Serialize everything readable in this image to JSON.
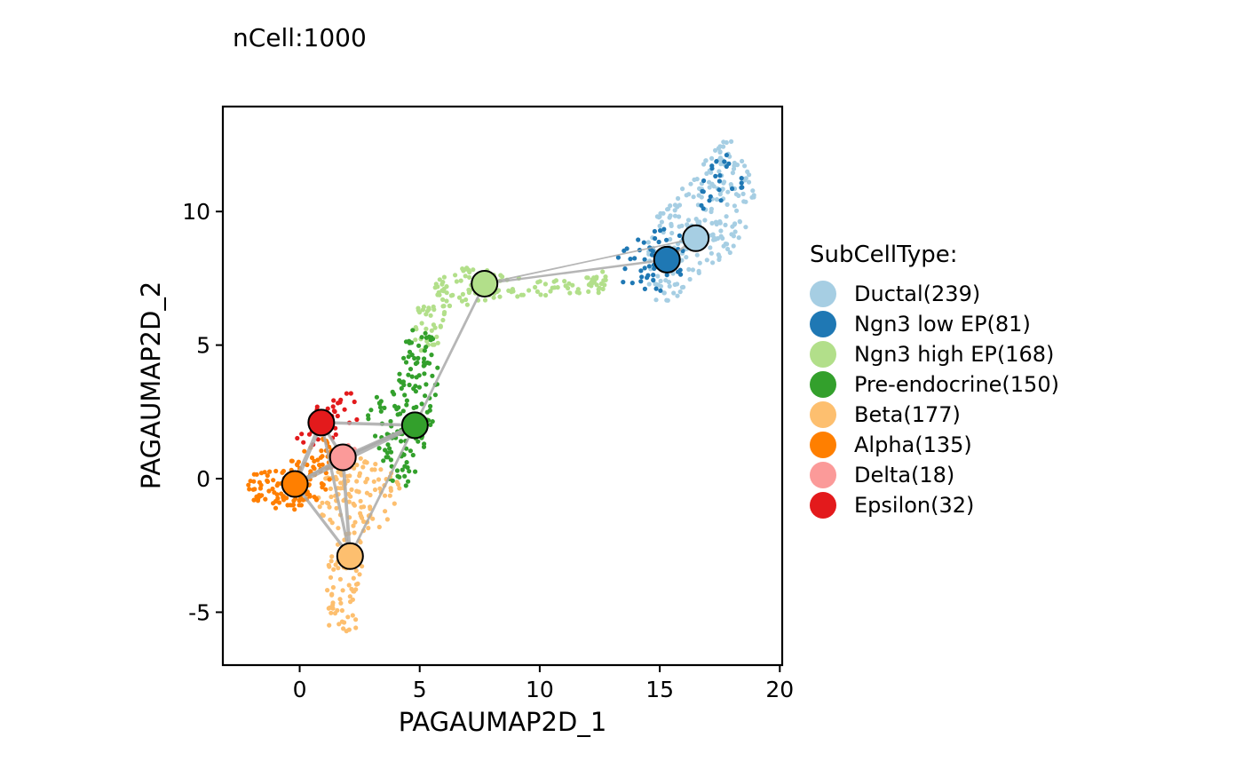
{
  "chart_data": {
    "type": "scatter",
    "title": "",
    "subtitle": "nCell:1000",
    "xlabel": "PAGAUMAP2D_1",
    "ylabel": "PAGAUMAP2D_2",
    "xlim": [
      -3.2,
      20.1
    ],
    "ylim": [
      -6.98,
      13.93
    ],
    "x_ticks": [
      0,
      5,
      10,
      15,
      20
    ],
    "y_ticks": [
      -5,
      0,
      5,
      10
    ],
    "grid": false,
    "legend": {
      "title": "SubCellType:",
      "position": "right",
      "entries": [
        {
          "label": "Ductal(239)",
          "color": "#A6CEE3"
        },
        {
          "label": "Ngn3 low EP(81)",
          "color": "#1F78B4"
        },
        {
          "label": "Ngn3 high EP(168)",
          "color": "#B2DF8A"
        },
        {
          "label": "Pre-endocrine(150)",
          "color": "#33A02C"
        },
        {
          "label": "Beta(177)",
          "color": "#FDBF6F"
        },
        {
          "label": "Alpha(135)",
          "color": "#FF7F00"
        },
        {
          "label": "Delta(18)",
          "color": "#FB9A99"
        },
        {
          "label": "Epsilon(32)",
          "color": "#E31A1C"
        }
      ]
    },
    "series": [
      {
        "name": "Ductal",
        "count": 239,
        "color": "#A6CEE3",
        "centroid": [
          16.5,
          9.0
        ],
        "regions": [
          [
            [
              14.9,
              6.4
            ],
            [
              15.9,
              6.9
            ],
            [
              16.9,
              7.9
            ],
            [
              17.9,
              8.4
            ],
            [
              18.6,
              9.4
            ],
            [
              19.0,
              10.4
            ],
            [
              18.6,
              11.9
            ],
            [
              17.9,
              12.9
            ],
            [
              17.1,
              12.1
            ],
            [
              16.1,
              11.1
            ],
            [
              15.1,
              10.4
            ],
            [
              14.5,
              9.2
            ],
            [
              14.5,
              7.4
            ]
          ]
        ]
      },
      {
        "name": "Ngn3 low EP",
        "count": 81,
        "color": "#1F78B4",
        "centroid": [
          15.3,
          8.2
        ],
        "regions": [
          [
            [
              12.9,
              7.4
            ],
            [
              14.1,
              6.9
            ],
            [
              15.3,
              7.0
            ],
            [
              16.1,
              7.9
            ],
            [
              16.1,
              9.0
            ],
            [
              15.3,
              9.5
            ],
            [
              14.1,
              9.1
            ],
            [
              13.2,
              8.4
            ]
          ],
          [
            [
              16.6,
              9.9
            ],
            [
              17.6,
              10.4
            ],
            [
              18.6,
              11.0
            ],
            [
              17.9,
              12.2
            ],
            [
              16.9,
              11.7
            ]
          ]
        ]
      },
      {
        "name": "Ngn3 high EP",
        "count": 168,
        "color": "#B2DF8A",
        "centroid": [
          7.7,
          7.3
        ],
        "regions": [
          [
            [
              5.5,
              7.3
            ],
            [
              6.3,
              7.8
            ],
            [
              7.6,
              8.0
            ],
            [
              8.6,
              7.6
            ],
            [
              10.1,
              7.4
            ],
            [
              11.6,
              7.5
            ],
            [
              12.9,
              7.9
            ],
            [
              12.6,
              6.9
            ],
            [
              10.6,
              6.9
            ],
            [
              8.6,
              6.7
            ],
            [
              7.1,
              6.5
            ],
            [
              5.9,
              6.4
            ],
            [
              4.9,
              6.6
            ],
            [
              4.7,
              5.3
            ],
            [
              5.1,
              4.6
            ],
            [
              5.9,
              5.1
            ],
            [
              6.1,
              6.1
            ]
          ]
        ]
      },
      {
        "name": "Pre-endocrine",
        "count": 150,
        "color": "#33A02C",
        "centroid": [
          4.8,
          2.0
        ],
        "regions": [
          [
            [
              3.6,
              0.2
            ],
            [
              4.3,
              -0.8
            ],
            [
              5.1,
              0.6
            ],
            [
              5.6,
              2.3
            ],
            [
              5.9,
              3.9
            ],
            [
              5.6,
              5.3
            ],
            [
              4.6,
              5.9
            ],
            [
              4.3,
              4.6
            ],
            [
              3.9,
              3.3
            ],
            [
              3.3,
              3.2
            ],
            [
              2.6,
              2.3
            ],
            [
              3.1,
              1.6
            ]
          ]
        ]
      },
      {
        "name": "Beta",
        "count": 177,
        "color": "#FDBF6F",
        "centroid": [
          2.1,
          -2.9
        ],
        "regions": [
          [
            [
              1.1,
              0.5
            ],
            [
              2.6,
              0.8
            ],
            [
              3.9,
              0.3
            ],
            [
              4.3,
              -0.7
            ],
            [
              3.6,
              -1.7
            ],
            [
              2.6,
              -2.1
            ],
            [
              2.6,
              -3.6
            ],
            [
              2.4,
              -5.9
            ],
            [
              1.2,
              -5.9
            ],
            [
              1.1,
              -3.6
            ],
            [
              1.6,
              -2.0
            ],
            [
              0.6,
              -1.1
            ]
          ]
        ]
      },
      {
        "name": "Alpha",
        "count": 135,
        "color": "#FF7F00",
        "centroid": [
          -0.2,
          -0.2
        ],
        "regions": [
          [
            [
              -2.0,
              0.3
            ],
            [
              -0.7,
              0.4
            ],
            [
              0.3,
              1.2
            ],
            [
              1.0,
              1.6
            ],
            [
              1.6,
              0.7
            ],
            [
              1.1,
              -0.6
            ],
            [
              0.1,
              -1.1
            ],
            [
              -1.0,
              -1.3
            ],
            [
              -1.9,
              -0.9
            ],
            [
              -2.2,
              -0.2
            ]
          ]
        ]
      },
      {
        "name": "Delta",
        "count": 18,
        "color": "#FB9A99",
        "centroid": [
          1.8,
          0.8
        ],
        "regions": [
          [
            [
              1.2,
              1.0
            ],
            [
              2.1,
              1.3
            ],
            [
              2.5,
              0.9
            ],
            [
              2.0,
              0.2
            ],
            [
              1.3,
              0.4
            ]
          ]
        ]
      },
      {
        "name": "Epsilon",
        "count": 32,
        "color": "#E31A1C",
        "centroid": [
          0.9,
          2.1
        ],
        "regions": [
          [
            [
              0.0,
              2.2
            ],
            [
              1.1,
              3.0
            ],
            [
              2.3,
              3.3
            ],
            [
              2.5,
              2.3
            ],
            [
              1.6,
              1.6
            ],
            [
              0.6,
              1.2
            ],
            [
              -0.2,
              1.4
            ]
          ]
        ]
      }
    ],
    "paga_edges": [
      {
        "from": "Ductal",
        "to": "Ngn3 low EP",
        "weight": 0.3
      },
      {
        "from": "Ductal",
        "to": "Ngn3 high EP",
        "weight": 0.15
      },
      {
        "from": "Ngn3 low EP",
        "to": "Ngn3 high EP",
        "weight": 0.3
      },
      {
        "from": "Ngn3 high EP",
        "to": "Pre-endocrine",
        "weight": 0.35
      },
      {
        "from": "Pre-endocrine",
        "to": "Epsilon",
        "weight": 0.5
      },
      {
        "from": "Pre-endocrine",
        "to": "Delta",
        "weight": 0.6
      },
      {
        "from": "Pre-endocrine",
        "to": "Alpha",
        "weight": 0.9
      },
      {
        "from": "Pre-endocrine",
        "to": "Beta",
        "weight": 0.35
      },
      {
        "from": "Epsilon",
        "to": "Alpha",
        "weight": 0.8
      },
      {
        "from": "Epsilon",
        "to": "Delta",
        "weight": 0.5
      },
      {
        "from": "Epsilon",
        "to": "Beta",
        "weight": 0.45
      },
      {
        "from": "Delta",
        "to": "Alpha",
        "weight": 0.45
      },
      {
        "from": "Delta",
        "to": "Beta",
        "weight": 0.55
      },
      {
        "from": "Alpha",
        "to": "Beta",
        "weight": 0.45
      }
    ]
  }
}
